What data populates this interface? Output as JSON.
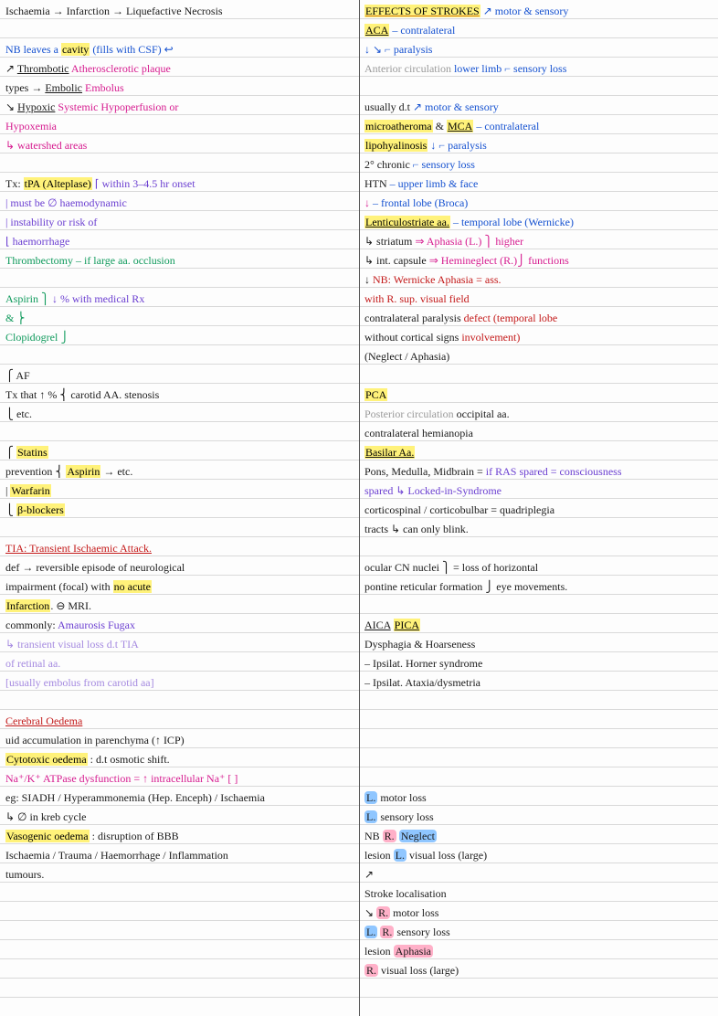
{
  "colors": {
    "black": "#1a1a1a",
    "blue": "#1551d0",
    "magenta": "#d61b8f",
    "purple": "#6b3fd1",
    "green": "#0f9a5c",
    "red": "#c31919",
    "gray": "#9a9a9a",
    "orange": "#d17a1a",
    "lightpurple": "#a58ae0"
  },
  "left_lines": [
    [
      {
        "t": "Ischaemia → Infarction → Liquefactive Necrosis",
        "c": "black"
      }
    ],
    [],
    [
      {
        "t": "NB leaves a ",
        "c": "blue"
      },
      {
        "t": "cavity",
        "c": "blue",
        "hl": true
      },
      {
        "t": " (fills with CSF) ↩",
        "c": "blue"
      }
    ],
    [
      {
        "t": "        ↗ ",
        "c": "black"
      },
      {
        "t": "Thrombotic",
        "c": "black",
        "u": true
      },
      {
        "t": "   ",
        "c": "black"
      },
      {
        "t": "Atherosclerotic plaque",
        "c": "magenta"
      }
    ],
    [
      {
        "t": "types → ",
        "c": "black"
      },
      {
        "t": "Embolic",
        "c": "black",
        "u": true
      },
      {
        "t": "    ",
        "c": "black"
      },
      {
        "t": "Embolus",
        "c": "magenta"
      }
    ],
    [
      {
        "t": "        ↘ ",
        "c": "black"
      },
      {
        "t": "Hypoxic",
        "c": "black",
        "u": true
      },
      {
        "t": "   ",
        "c": "black"
      },
      {
        "t": "Systemic Hypoperfusion or",
        "c": "magenta"
      }
    ],
    [
      {
        "t": "                     Hypoxemia",
        "c": "magenta"
      }
    ],
    [
      {
        "t": "                     ↳ watershed areas",
        "c": "magenta"
      }
    ],
    [],
    [
      {
        "t": "Tx: ",
        "c": "black"
      },
      {
        "t": "tPA (Alteplase)",
        "c": "green",
        "hl": true
      },
      {
        "t": " ⌈ within 3–4.5 hr onset",
        "c": "purple"
      }
    ],
    [
      {
        "t": "                  | must be ∅ haemodynamic",
        "c": "purple"
      }
    ],
    [
      {
        "t": "                  | instability or risk of",
        "c": "purple"
      }
    ],
    [
      {
        "t": "                  ⌊ haemorrhage",
        "c": "purple"
      }
    ],
    [
      {
        "t": "  Thrombectomy – if large aa. occlusion",
        "c": "green"
      }
    ],
    [],
    [
      {
        "t": "  Aspirin   ⎫",
        "c": "green"
      },
      {
        "t": " ↓ % with medical Rx",
        "c": "purple"
      }
    ],
    [
      {
        "t": "     &      ⎬",
        "c": "green"
      }
    ],
    [
      {
        "t": "  Clopidogrel ⎭",
        "c": "green"
      }
    ],
    [],
    [
      {
        "t": "                 ⎧ AF",
        "c": "black"
      }
    ],
    [
      {
        "t": "Tx that ↑ %  ⎨ carotid AA. stenosis",
        "c": "black"
      }
    ],
    [
      {
        "t": "                 ⎩ etc.",
        "c": "black"
      }
    ],
    [],
    [
      {
        "t": "           ⎧ ",
        "c": "black"
      },
      {
        "t": "Statins",
        "c": "black",
        "hl": true
      }
    ],
    [
      {
        "t": "prevention ⎨ ",
        "c": "black"
      },
      {
        "t": "Aspirin",
        "c": "black",
        "hl": true
      },
      {
        "t": "   → etc.",
        "c": "black"
      }
    ],
    [
      {
        "t": "           | ",
        "c": "black"
      },
      {
        "t": "Warfarin",
        "c": "black",
        "hl": true
      }
    ],
    [
      {
        "t": "           ⎩ ",
        "c": "black"
      },
      {
        "t": "β-blockers",
        "c": "black",
        "hl": true
      }
    ],
    [],
    [
      {
        "t": "TIA: Transient Ischaemic Attack.",
        "c": "red",
        "u": true
      }
    ],
    [
      {
        "t": "def → reversible episode of neurological",
        "c": "black"
      }
    ],
    [
      {
        "t": "      impairment (focal) with ",
        "c": "black"
      },
      {
        "t": "no acute",
        "c": "black",
        "hl": true
      }
    ],
    [
      {
        "t": "      ",
        "c": "black"
      },
      {
        "t": "Infarction",
        "c": "black",
        "hl": true
      },
      {
        "t": ". ⊖ MRI.",
        "c": "black"
      }
    ],
    [
      {
        "t": "commonly: ",
        "c": "black"
      },
      {
        "t": "Amaurosis Fugax",
        "c": "purple"
      }
    ],
    [
      {
        "t": "        ↳ transient visual loss d.t TIA",
        "c": "lightpurple"
      }
    ],
    [
      {
        "t": "          of retinal aa.",
        "c": "lightpurple"
      }
    ],
    [
      {
        "t": "      [usually embolus from carotid aa]",
        "c": "lightpurple"
      }
    ],
    [],
    [
      {
        "t": "Cerebral Oedema",
        "c": "red",
        "u": true
      }
    ],
    [
      {
        "t": "uid accumulation in parenchyma (↑ ICP)",
        "c": "black"
      }
    ],
    [
      {
        "t": "Cytotoxic oedema",
        "c": "black",
        "hl": true
      },
      {
        "t": " : d.t osmotic shift.",
        "c": "black"
      }
    ],
    [
      {
        "t": "Na⁺/K⁺ ATPase dysfunction = ↑ intracellular Na⁺ [ ]",
        "c": "magenta"
      }
    ],
    [
      {
        "t": "eg: SIADH / Hyperammonemia (Hep. Enceph) / Ischaemia",
        "c": "black"
      }
    ],
    [
      {
        "t": "                       ↳ ∅ in kreb cycle",
        "c": "black"
      }
    ],
    [
      {
        "t": "Vasogenic oedema",
        "c": "black",
        "hl": true
      },
      {
        "t": " : disruption of BBB",
        "c": "black"
      }
    ],
    [
      {
        "t": "Ischaemia / Trauma / Haemorrhage / Inflammation",
        "c": "black"
      }
    ],
    [
      {
        "t": "tumours.",
        "c": "black"
      }
    ]
  ],
  "right_lines": [
    [
      {
        "t": "EFFECTS OF STROKES",
        "c": "orange",
        "u": true,
        "hl": true
      },
      {
        "t": "        ↗ motor & sensory",
        "c": "blue"
      }
    ],
    [
      {
        "t": "                        ",
        "c": "black"
      },
      {
        "t": "ACA",
        "c": "black",
        "hl": true,
        "u": true
      },
      {
        "t": "  – contralateral",
        "c": "blue"
      }
    ],
    [
      {
        "t": "                         ↓    ↘        ⌐ paralysis",
        "c": "blue"
      }
    ],
    [
      {
        "t": "Anterior circulation",
        "c": "gray"
      },
      {
        "t": "   lower limb   ⌐ sensory loss",
        "c": "blue"
      }
    ],
    [],
    [
      {
        "t": "usually d.t",
        "c": "black"
      },
      {
        "t": "                 ↗ motor & sensory",
        "c": "blue"
      }
    ],
    [
      {
        "t": "microatheroma",
        "c": "magenta",
        "hl": true
      },
      {
        "t": " &        ",
        "c": "black"
      },
      {
        "t": "MCA",
        "c": "black",
        "hl": true,
        "u": true
      },
      {
        "t": " – contralateral",
        "c": "blue"
      }
    ],
    [
      {
        "t": "lipohyalinosis",
        "c": "magenta",
        "hl": true
      },
      {
        "t": "           ↓     ⌐ paralysis",
        "c": "blue"
      }
    ],
    [
      {
        "t": "2° chronic",
        "c": "black"
      },
      {
        "t": "                        ⌐ sensory loss",
        "c": "blue"
      }
    ],
    [
      {
        "t": "HTN",
        "c": "black"
      },
      {
        "t": "                     – upper limb & face",
        "c": "blue"
      }
    ],
    [
      {
        "t": "  ↓",
        "c": "magenta"
      },
      {
        "t": "                       – frontal lobe (Broca)",
        "c": "blue"
      }
    ],
    [
      {
        "t": "Lenticulostriate aa.",
        "c": "black",
        "hl": true,
        "u": true
      },
      {
        "t": "   – temporal lobe (Wernicke)",
        "c": "blue"
      }
    ],
    [
      {
        "t": "↳ striatum          ",
        "c": "black"
      },
      {
        "t": "⇒ Aphasia (L.)    ⎫ higher",
        "c": "magenta"
      }
    ],
    [
      {
        "t": "↳ int. capsule      ",
        "c": "black"
      },
      {
        "t": "⇒ Hemineglect (R.)⎭ functions",
        "c": "magenta"
      }
    ],
    [
      {
        "t": "   ↓               ",
        "c": "black"
      },
      {
        "t": "NB: Wernicke Aphasia = ass.",
        "c": "red"
      }
    ],
    [
      {
        "t": "                   with R. sup. visual field",
        "c": "red"
      }
    ],
    [
      {
        "t": "contralateral paralysis ",
        "c": "black"
      },
      {
        "t": "defect (temporal lobe",
        "c": "red"
      }
    ],
    [
      {
        "t": "without cortical signs   ",
        "c": "black"
      },
      {
        "t": "involvement)",
        "c": "red"
      }
    ],
    [
      {
        "t": "(Neglect / Aphasia)",
        "c": "black"
      }
    ],
    [],
    [
      {
        "t": "                          ",
        "c": "black"
      },
      {
        "t": "PCA",
        "c": "black",
        "hl": true
      }
    ],
    [
      {
        "t": "Posterior circulation",
        "c": "gray"
      },
      {
        "t": "     occipital aa.",
        "c": "black"
      }
    ],
    [
      {
        "t": "                          contralateral hemianopia",
        "c": "black"
      }
    ],
    [
      {
        "t": "Basilar Aa.",
        "c": "black",
        "u": true,
        "hl": true
      }
    ],
    [
      {
        "t": "Pons, Medulla, Midbrain = ",
        "c": "black"
      },
      {
        "t": "if RAS spared = consciousness",
        "c": "purple"
      }
    ],
    [
      {
        "t": "                          ",
        "c": "black"
      },
      {
        "t": "spared ↳ Locked-in-Syndrome",
        "c": "purple"
      }
    ],
    [
      {
        "t": "corticospinal / corticobulbar = quadriplegia",
        "c": "black"
      }
    ],
    [
      {
        "t": "tracts                  ↳ can only blink.",
        "c": "black"
      }
    ],
    [],
    [
      {
        "t": "ocular CN nuclei        ⎫ = loss of horizontal",
        "c": "black"
      }
    ],
    [
      {
        "t": "pontine reticular formation ⎭  eye movements.",
        "c": "black"
      }
    ],
    [],
    [
      {
        "t": "AICA",
        "c": "black",
        "u": true
      },
      {
        "t": "                     ",
        "c": "black"
      },
      {
        "t": "PICA",
        "c": "black",
        "u": true,
        "hl": true
      }
    ],
    [
      {
        "t": "                          Dysphagia & Hoarseness",
        "c": "black"
      }
    ],
    [
      {
        "t": "                          – Ipsilat. Horner syndrome",
        "c": "black"
      }
    ],
    [
      {
        "t": "                          – Ipsilat. Ataxia/dysmetria",
        "c": "black"
      }
    ],
    [],
    [],
    [],
    [],
    [],
    [
      {
        "t": "                              ",
        "c": "black"
      },
      {
        "t": "L.",
        "c": "black",
        "bg": "blue"
      },
      {
        "t": " motor loss",
        "c": "black"
      }
    ],
    [
      {
        "t": "                              ",
        "c": "black"
      },
      {
        "t": "L.",
        "c": "black",
        "bg": "blue"
      },
      {
        "t": " sensory loss",
        "c": "black"
      }
    ],
    [
      {
        "t": "NB                   ",
        "c": "black"
      },
      {
        "t": "R.",
        "c": "black",
        "bg": "pink"
      },
      {
        "t": "       ",
        "c": "black"
      },
      {
        "t": "Neglect",
        "c": "black",
        "bg": "blue"
      }
    ],
    [
      {
        "t": "                     lesion   ",
        "c": "black"
      },
      {
        "t": "L.",
        "c": "black",
        "bg": "blue"
      },
      {
        "t": " visual loss (large)",
        "c": "black"
      }
    ],
    [
      {
        "t": "                      ↗",
        "c": "black"
      }
    ],
    [
      {
        "t": "Stroke localisation",
        "c": "black"
      }
    ],
    [
      {
        "t": "                      ↘       ",
        "c": "black"
      },
      {
        "t": "R.",
        "c": "black",
        "bg": "pink"
      },
      {
        "t": " motor loss",
        "c": "black"
      }
    ],
    [
      {
        "t": "                     ",
        "c": "black"
      },
      {
        "t": "L.",
        "c": "black",
        "bg": "blue"
      },
      {
        "t": "       ",
        "c": "black"
      },
      {
        "t": "R.",
        "c": "black",
        "bg": "pink"
      },
      {
        "t": " sensory loss",
        "c": "black"
      }
    ],
    [
      {
        "t": "                     lesion   ",
        "c": "black"
      },
      {
        "t": "Aphasia",
        "c": "black",
        "bg": "pink"
      }
    ],
    [
      {
        "t": "                              ",
        "c": "black"
      },
      {
        "t": "R.",
        "c": "black",
        "bg": "pink"
      },
      {
        "t": " visual loss (large)",
        "c": "black"
      }
    ]
  ]
}
